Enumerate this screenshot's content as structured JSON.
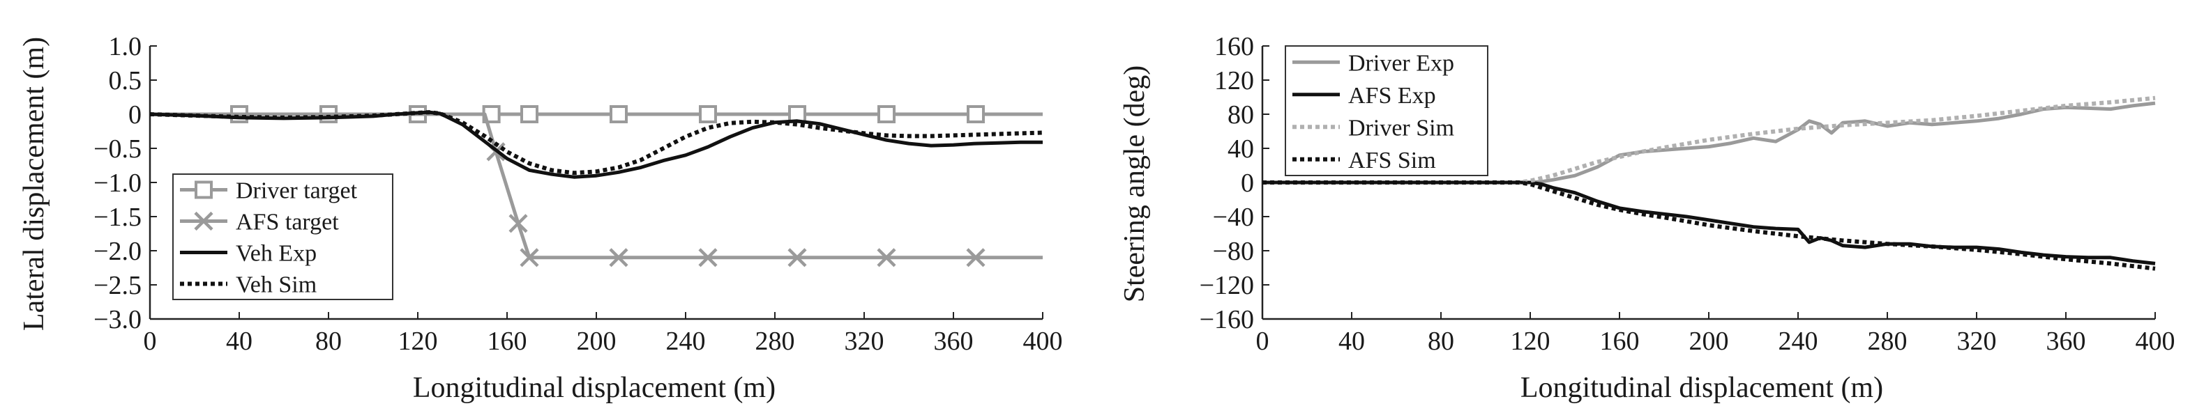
{
  "chart_data": [
    {
      "type": "line",
      "xlabel": "Longitudinal displacement (m)",
      "ylabel": "Lateral displacement (m)",
      "xlim": [
        0,
        400
      ],
      "ylim": [
        -3.0,
        1.0
      ],
      "xticks": [
        "0",
        "40",
        "80",
        "120",
        "160",
        "200",
        "240",
        "280",
        "320",
        "360",
        "400"
      ],
      "yticks": [
        "1.0",
        "0.5",
        "0",
        "−0.5",
        "−1.0",
        "−1.5",
        "−2.0",
        "−2.5",
        "−3.0"
      ],
      "grid": false,
      "legend_position": "bottom-left",
      "series": [
        {
          "name": "Driver target",
          "color": "#9a9a9a",
          "style": "solid",
          "marker": "square",
          "x": [
            0,
            400
          ],
          "y": [
            0,
            0
          ],
          "marker_x": [
            40,
            80,
            120,
            153,
            170,
            210,
            250,
            290,
            330,
            370
          ]
        },
        {
          "name": "AFS target",
          "color": "#9a9a9a",
          "style": "solid",
          "marker": "x",
          "x": [
            0,
            120,
            150,
            155,
            165,
            170,
            400
          ],
          "y": [
            0,
            0,
            0,
            -0.55,
            -1.6,
            -2.1,
            -2.1
          ],
          "marker_x": [
            155,
            165,
            170,
            210,
            250,
            290,
            330,
            370
          ]
        },
        {
          "name": "Veh Exp",
          "color": "#111111",
          "style": "solid",
          "x": [
            0,
            20,
            40,
            60,
            80,
            100,
            110,
            120,
            125,
            130,
            140,
            150,
            160,
            170,
            180,
            190,
            200,
            210,
            220,
            230,
            240,
            250,
            260,
            270,
            280,
            290,
            300,
            310,
            320,
            330,
            340,
            350,
            360,
            370,
            380,
            390,
            400
          ],
          "y": [
            0,
            -0.02,
            -0.05,
            -0.06,
            -0.05,
            -0.03,
            0,
            0.02,
            0.03,
            0.01,
            -0.15,
            -0.4,
            -0.65,
            -0.82,
            -0.88,
            -0.92,
            -0.9,
            -0.85,
            -0.78,
            -0.68,
            -0.6,
            -0.48,
            -0.33,
            -0.2,
            -0.12,
            -0.1,
            -0.14,
            -0.22,
            -0.3,
            -0.38,
            -0.43,
            -0.46,
            -0.45,
            -0.43,
            -0.42,
            -0.41,
            -0.41
          ]
        },
        {
          "name": "Veh Sim",
          "color": "#111111",
          "style": "dotted",
          "x": [
            0,
            20,
            40,
            60,
            80,
            100,
            110,
            120,
            125,
            130,
            140,
            150,
            160,
            170,
            180,
            190,
            200,
            210,
            220,
            230,
            240,
            250,
            260,
            270,
            280,
            290,
            300,
            310,
            320,
            330,
            340,
            350,
            360,
            370,
            380,
            390,
            400
          ],
          "y": [
            0,
            -0.02,
            -0.04,
            -0.05,
            -0.04,
            -0.02,
            0,
            0.02,
            0.03,
            0.01,
            -0.12,
            -0.32,
            -0.55,
            -0.72,
            -0.82,
            -0.86,
            -0.84,
            -0.78,
            -0.67,
            -0.5,
            -0.33,
            -0.2,
            -0.13,
            -0.11,
            -0.12,
            -0.15,
            -0.2,
            -0.24,
            -0.28,
            -0.31,
            -0.32,
            -0.32,
            -0.31,
            -0.3,
            -0.29,
            -0.28,
            -0.27
          ]
        }
      ]
    },
    {
      "type": "line",
      "xlabel": "Longitudinal displacement (m)",
      "ylabel": "Steering angle (deg)",
      "xlim": [
        0,
        400
      ],
      "ylim": [
        -160,
        160
      ],
      "xticks": [
        "0",
        "40",
        "80",
        "120",
        "160",
        "200",
        "240",
        "280",
        "320",
        "360",
        "400"
      ],
      "yticks": [
        "160",
        "120",
        "80",
        "40",
        "0",
        "−40",
        "−80",
        "−120",
        "−160"
      ],
      "grid": false,
      "legend_position": "top-left",
      "series": [
        {
          "name": "Driver Exp",
          "color": "#9a9a9a",
          "style": "solid",
          "x": [
            0,
            120,
            125,
            130,
            140,
            150,
            160,
            170,
            180,
            190,
            200,
            210,
            220,
            230,
            240,
            245,
            250,
            255,
            260,
            270,
            280,
            290,
            300,
            310,
            320,
            330,
            340,
            350,
            360,
            370,
            380,
            390,
            400
          ],
          "y": [
            0,
            0,
            1,
            3,
            8,
            18,
            32,
            36,
            38,
            40,
            42,
            46,
            52,
            48,
            62,
            72,
            68,
            58,
            70,
            72,
            66,
            70,
            68,
            70,
            72,
            75,
            80,
            86,
            88,
            87,
            86,
            90,
            93
          ]
        },
        {
          "name": "AFS Exp",
          "color": "#111111",
          "style": "solid",
          "x": [
            0,
            120,
            125,
            130,
            140,
            150,
            160,
            170,
            180,
            190,
            200,
            210,
            220,
            230,
            240,
            245,
            250,
            255,
            260,
            270,
            280,
            290,
            300,
            310,
            320,
            330,
            340,
            350,
            360,
            370,
            380,
            390,
            400
          ],
          "y": [
            0,
            0,
            -2,
            -6,
            -12,
            -22,
            -30,
            -34,
            -37,
            -40,
            -44,
            -48,
            -52,
            -54,
            -55,
            -70,
            -65,
            -68,
            -74,
            -76,
            -72,
            -72,
            -75,
            -76,
            -76,
            -78,
            -82,
            -85,
            -87,
            -88,
            -88,
            -92,
            -95
          ]
        },
        {
          "name": "Driver Sim",
          "color": "#b0b0b0",
          "style": "dotted",
          "x": [
            0,
            115,
            120,
            130,
            140,
            150,
            160,
            170,
            180,
            200,
            220,
            240,
            260,
            280,
            300,
            320,
            340,
            360,
            380,
            400
          ],
          "y": [
            0,
            0,
            2,
            8,
            16,
            24,
            30,
            36,
            41,
            50,
            57,
            63,
            67,
            70,
            73,
            78,
            84,
            90,
            94,
            99
          ]
        },
        {
          "name": "AFS Sim",
          "color": "#111111",
          "style": "dotted",
          "x": [
            0,
            115,
            120,
            130,
            140,
            150,
            160,
            170,
            180,
            200,
            220,
            240,
            260,
            280,
            300,
            320,
            340,
            360,
            380,
            400
          ],
          "y": [
            0,
            0,
            -2,
            -10,
            -18,
            -26,
            -32,
            -37,
            -41,
            -50,
            -57,
            -63,
            -68,
            -72,
            -75,
            -79,
            -84,
            -90,
            -95,
            -101
          ]
        }
      ]
    }
  ]
}
